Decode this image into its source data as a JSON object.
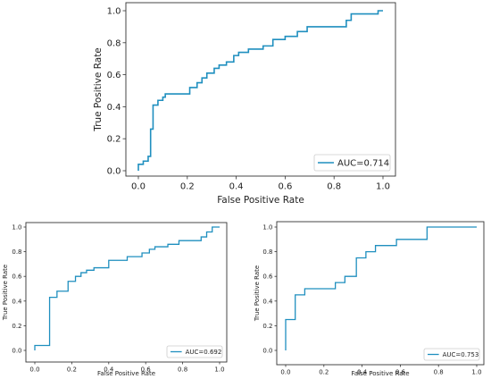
{
  "line_color": "#1f8fbf",
  "chart_data": [
    {
      "type": "line",
      "xlabel": "False Positive Rate",
      "ylabel": "True Positive Rate",
      "xlim": [
        0.0,
        1.0
      ],
      "ylim": [
        0.0,
        1.0
      ],
      "xticks": [
        "0.0",
        "0.2",
        "0.4",
        "0.6",
        "0.8",
        "1.0"
      ],
      "yticks": [
        "0.0",
        "0.2",
        "0.4",
        "0.6",
        "0.8",
        "1.0"
      ],
      "grid": false,
      "legend_position": "bottom-right",
      "series": [
        {
          "name": "AUC=0.714",
          "x": [
            0.0,
            0.0,
            0.02,
            0.02,
            0.04,
            0.04,
            0.05,
            0.05,
            0.06,
            0.06,
            0.08,
            0.08,
            0.1,
            0.1,
            0.11,
            0.11,
            0.13,
            0.13,
            0.21,
            0.21,
            0.24,
            0.24,
            0.26,
            0.26,
            0.28,
            0.28,
            0.31,
            0.31,
            0.33,
            0.33,
            0.36,
            0.36,
            0.39,
            0.39,
            0.41,
            0.41,
            0.45,
            0.45,
            0.51,
            0.51,
            0.55,
            0.55,
            0.6,
            0.6,
            0.65,
            0.65,
            0.69,
            0.69,
            0.85,
            0.85,
            0.87,
            0.87,
            0.98,
            0.98,
            1.0
          ],
          "y": [
            0.0,
            0.04,
            0.04,
            0.06,
            0.06,
            0.09,
            0.09,
            0.26,
            0.26,
            0.41,
            0.41,
            0.44,
            0.44,
            0.46,
            0.46,
            0.48,
            0.48,
            0.48,
            0.48,
            0.52,
            0.52,
            0.55,
            0.55,
            0.58,
            0.58,
            0.61,
            0.61,
            0.64,
            0.64,
            0.66,
            0.66,
            0.68,
            0.68,
            0.72,
            0.72,
            0.74,
            0.74,
            0.76,
            0.76,
            0.78,
            0.78,
            0.82,
            0.82,
            0.84,
            0.84,
            0.87,
            0.87,
            0.9,
            0.9,
            0.94,
            0.94,
            0.98,
            0.98,
            1.0,
            1.0
          ]
        }
      ]
    },
    {
      "type": "line",
      "xlabel": "False Positive Rate",
      "ylabel": "True Positive Rate",
      "xlim": [
        0.0,
        1.0
      ],
      "ylim": [
        0.0,
        1.0
      ],
      "xticks": [
        "0.0",
        "0.2",
        "0.4",
        "0.6",
        "0.8",
        "1.0"
      ],
      "yticks": [
        "0.0",
        "0.2",
        "0.4",
        "0.6",
        "0.8",
        "1.0"
      ],
      "grid": false,
      "legend_position": "bottom-right",
      "series": [
        {
          "name": "AUC=0.692",
          "x": [
            0.0,
            0.0,
            0.08,
            0.08,
            0.12,
            0.12,
            0.18,
            0.18,
            0.22,
            0.22,
            0.25,
            0.25,
            0.28,
            0.28,
            0.32,
            0.32,
            0.4,
            0.4,
            0.5,
            0.5,
            0.58,
            0.58,
            0.62,
            0.62,
            0.65,
            0.65,
            0.72,
            0.72,
            0.78,
            0.78,
            0.9,
            0.9,
            0.93,
            0.93,
            0.96,
            0.96,
            1.0
          ],
          "y": [
            0.0,
            0.04,
            0.04,
            0.43,
            0.43,
            0.48,
            0.48,
            0.56,
            0.56,
            0.6,
            0.6,
            0.63,
            0.63,
            0.65,
            0.65,
            0.67,
            0.67,
            0.73,
            0.73,
            0.76,
            0.76,
            0.79,
            0.79,
            0.82,
            0.82,
            0.84,
            0.84,
            0.86,
            0.86,
            0.89,
            0.89,
            0.92,
            0.92,
            0.96,
            0.96,
            1.0,
            1.0
          ]
        }
      ]
    },
    {
      "type": "line",
      "xlabel": "False Positive Rate",
      "ylabel": "True Positive Rate",
      "xlim": [
        0.0,
        1.0
      ],
      "ylim": [
        0.0,
        1.0
      ],
      "xticks": [
        "0.0",
        "0.2",
        "0.4",
        "0.6",
        "0.8",
        "1.0"
      ],
      "yticks": [
        "0.0",
        "0.2",
        "0.4",
        "0.6",
        "0.8",
        "1.0"
      ],
      "grid": false,
      "legend_position": "bottom-right",
      "series": [
        {
          "name": "AUC=0.753",
          "x": [
            0.0,
            0.0,
            0.05,
            0.05,
            0.1,
            0.1,
            0.26,
            0.26,
            0.31,
            0.31,
            0.37,
            0.37,
            0.42,
            0.42,
            0.47,
            0.47,
            0.58,
            0.58,
            0.74,
            0.74,
            1.0
          ],
          "y": [
            0.0,
            0.25,
            0.25,
            0.45,
            0.45,
            0.5,
            0.5,
            0.55,
            0.55,
            0.6,
            0.6,
            0.75,
            0.75,
            0.8,
            0.8,
            0.85,
            0.85,
            0.9,
            0.9,
            1.0,
            1.0
          ]
        }
      ]
    }
  ]
}
